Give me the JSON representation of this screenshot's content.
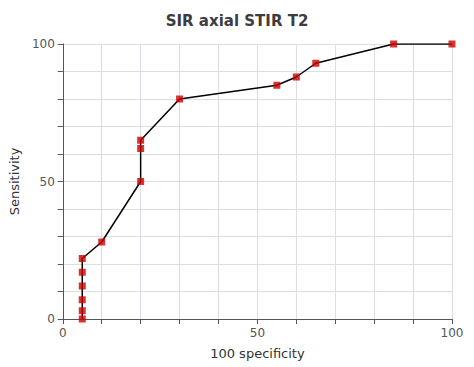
{
  "chart_data": {
    "type": "line",
    "title": "SIR axial STIR T2",
    "xlabel": "100 specificity",
    "ylabel": "Sensitivity",
    "x": [
      5,
      5,
      5,
      5,
      5,
      5,
      10,
      20,
      20,
      20,
      30,
      55,
      60,
      65,
      85,
      100
    ],
    "series": [
      {
        "type": "line",
        "color": "#000000",
        "values": [
          0,
          3,
          7,
          12,
          17,
          22,
          28,
          50,
          62,
          65,
          80,
          85,
          88,
          93,
          100,
          100
        ]
      },
      {
        "type": "scatter",
        "color": "#cc0000",
        "marker": "square",
        "values": [
          0,
          3,
          7,
          12,
          17,
          22,
          28,
          50,
          62,
          65,
          80,
          85,
          88,
          93,
          100,
          100
        ]
      }
    ],
    "xlim": [
      0,
      100
    ],
    "ylim": [
      0,
      100
    ],
    "xticks": [
      0,
      {
        "value": 10,
        "label": null
      },
      {
        "value": 20,
        "label": null
      },
      {
        "value": 30,
        "label": null
      },
      {
        "value": 40,
        "label": null
      },
      50,
      {
        "value": 60,
        "label": null
      },
      {
        "value": 70,
        "label": null
      },
      {
        "value": 80,
        "label": null
      },
      {
        "value": 90,
        "label": null
      },
      100
    ],
    "yticks": [
      0,
      {
        "value": 10,
        "label": null
      },
      {
        "value": 20,
        "label": null
      },
      {
        "value": 30,
        "label": null
      },
      {
        "value": 40,
        "label": null
      },
      50,
      {
        "value": 60,
        "label": null
      },
      {
        "value": 70,
        "label": null
      },
      {
        "value": 80,
        "label": null
      },
      {
        "value": 90,
        "label": null
      },
      100
    ],
    "grid": true
  }
}
